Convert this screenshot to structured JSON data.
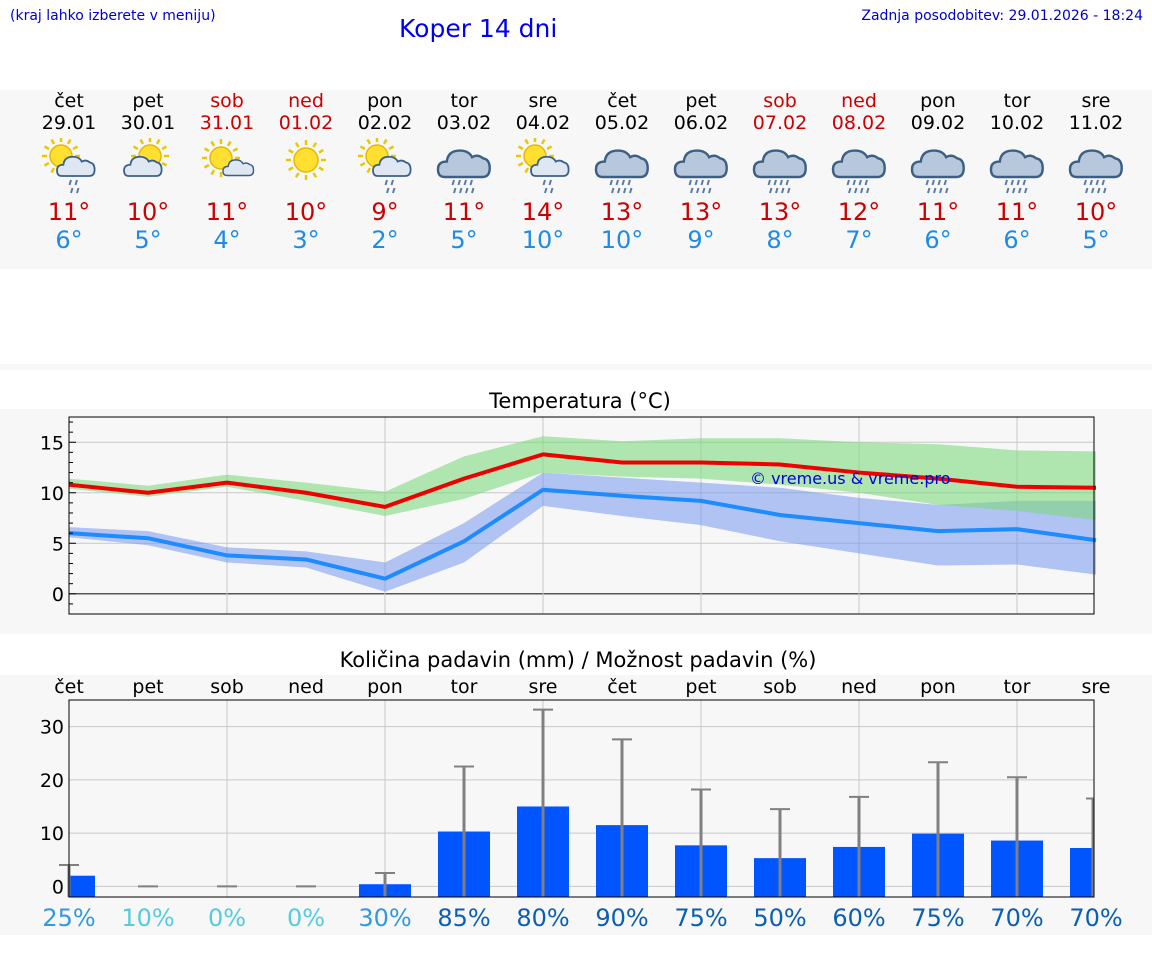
{
  "header": {
    "menu_hint": "(kraj lahko izberete v meniju)",
    "title": "Koper 14 dni",
    "updated": "Zadnja posodobitev: 29.01.2026 - 18:24"
  },
  "days": [
    {
      "name": "čet",
      "date": "29.01",
      "weekend": false,
      "icon": "sun-cloud-rain-icon",
      "tmax": "11°",
      "tmin": "6°"
    },
    {
      "name": "pet",
      "date": "30.01",
      "weekend": false,
      "icon": "sun-cloud-icon",
      "tmax": "10°",
      "tmin": "5°"
    },
    {
      "name": "sob",
      "date": "31.01",
      "weekend": true,
      "icon": "sun-small-cloud-icon",
      "tmax": "11°",
      "tmin": "4°"
    },
    {
      "name": "ned",
      "date": "01.02",
      "weekend": true,
      "icon": "sun-icon",
      "tmax": "10°",
      "tmin": "3°"
    },
    {
      "name": "pon",
      "date": "02.02",
      "weekend": false,
      "icon": "sun-cloud-rain-icon",
      "tmax": "9°",
      "tmin": "2°"
    },
    {
      "name": "tor",
      "date": "03.02",
      "weekend": false,
      "icon": "cloud-rain-icon",
      "tmax": "11°",
      "tmin": "5°"
    },
    {
      "name": "sre",
      "date": "04.02",
      "weekend": false,
      "icon": "sun-cloud-rain-icon",
      "tmax": "14°",
      "tmin": "10°"
    },
    {
      "name": "čet",
      "date": "05.02",
      "weekend": false,
      "icon": "cloud-rain-icon",
      "tmax": "13°",
      "tmin": "10°"
    },
    {
      "name": "pet",
      "date": "06.02",
      "weekend": false,
      "icon": "cloud-rain-icon",
      "tmax": "13°",
      "tmin": "9°"
    },
    {
      "name": "sob",
      "date": "07.02",
      "weekend": true,
      "icon": "cloud-rain-icon",
      "tmax": "13°",
      "tmin": "8°"
    },
    {
      "name": "ned",
      "date": "08.02",
      "weekend": true,
      "icon": "cloud-rain-icon",
      "tmax": "12°",
      "tmin": "7°"
    },
    {
      "name": "pon",
      "date": "09.02",
      "weekend": false,
      "icon": "cloud-rain-icon",
      "tmax": "11°",
      "tmin": "6°"
    },
    {
      "name": "tor",
      "date": "10.02",
      "weekend": false,
      "icon": "cloud-rain-icon",
      "tmax": "11°",
      "tmin": "6°"
    },
    {
      "name": "sre",
      "date": "11.02",
      "weekend": false,
      "icon": "cloud-rain-icon",
      "tmax": "10°",
      "tmin": "5°"
    }
  ],
  "colors": {
    "max_line": "#ee0000",
    "max_band": "#7ed87e",
    "min_line": "#1e8bff",
    "min_band": "#7799ee",
    "bar": "#0055ff",
    "error_bar": "#808080"
  },
  "chart_data": [
    {
      "type": "line",
      "title": "Temperatura (°C)",
      "ylim": [
        -2,
        17.5
      ],
      "yticks": [
        0,
        5,
        10,
        15
      ],
      "ytick_labels": [
        "0",
        "5",
        "10",
        "15"
      ],
      "watermark": "© vreme.us & vreme.pro",
      "x": [
        0,
        1,
        2,
        3,
        4,
        5,
        6,
        7,
        8,
        9,
        10,
        11,
        12,
        13
      ],
      "series": [
        {
          "name": "max",
          "values": [
            10.8,
            10.0,
            11.0,
            10.0,
            8.6,
            11.4,
            13.8,
            13.0,
            13.0,
            12.8,
            12.0,
            11.4,
            10.6,
            10.5
          ]
        },
        {
          "name": "max_band_high",
          "values": [
            11.4,
            10.7,
            11.8,
            11.0,
            10.1,
            13.6,
            15.6,
            15.1,
            15.4,
            15.4,
            15.0,
            14.8,
            14.2,
            14.1
          ]
        },
        {
          "name": "max_band_low",
          "values": [
            10.4,
            9.6,
            10.6,
            9.2,
            7.7,
            9.4,
            12.0,
            11.6,
            11.4,
            10.8,
            10.0,
            8.8,
            8.2,
            7.3
          ]
        },
        {
          "name": "min",
          "values": [
            6.0,
            5.5,
            3.8,
            3.4,
            1.5,
            5.2,
            10.3,
            9.7,
            9.2,
            7.8,
            7.0,
            6.2,
            6.4,
            5.3
          ]
        },
        {
          "name": "min_band_high",
          "values": [
            6.6,
            6.2,
            4.6,
            4.2,
            3.1,
            7.0,
            12.0,
            11.5,
            11.0,
            10.5,
            9.5,
            8.8,
            9.2,
            9.2
          ]
        },
        {
          "name": "min_band_low",
          "values": [
            5.6,
            4.8,
            3.1,
            2.6,
            0.2,
            3.1,
            8.7,
            7.7,
            6.8,
            5.2,
            4.0,
            2.8,
            2.9,
            1.9
          ]
        }
      ]
    },
    {
      "type": "bar",
      "title": "Količina padavin (mm) / Možnost padavin (%)",
      "ylim": [
        -2,
        35
      ],
      "yticks": [
        0,
        10,
        20,
        30
      ],
      "ytick_labels": [
        "0",
        "10",
        "20",
        "30"
      ],
      "categories": [
        "čet",
        "pet",
        "sob",
        "ned",
        "pon",
        "tor",
        "sre",
        "čet",
        "pet",
        "sob",
        "ned",
        "pon",
        "tor",
        "sre"
      ],
      "values": [
        2.0,
        0,
        0,
        0,
        0.4,
        10.3,
        15.0,
        11.5,
        7.7,
        5.3,
        7.4,
        9.9,
        8.6,
        7.2
      ],
      "error_high": [
        4.0,
        0,
        0,
        0,
        2.5,
        22.5,
        33.2,
        27.6,
        18.2,
        14.5,
        16.8,
        23.3,
        20.5,
        16.5
      ],
      "probability": [
        "25%",
        "10%",
        "0%",
        "0%",
        "30%",
        "85%",
        "80%",
        "90%",
        "75%",
        "50%",
        "60%",
        "75%",
        "70%",
        "70%"
      ],
      "probability_colors": [
        "#3399dd",
        "#55ccdd",
        "#55ccdd",
        "#55ccdd",
        "#3399dd",
        "#0a5fb4",
        "#0a5fb4",
        "#0a5fb4",
        "#0a5fb4",
        "#0a5fb4",
        "#0a5fb4",
        "#0a5fb4",
        "#0a5fb4",
        "#0a5fb4"
      ]
    }
  ]
}
